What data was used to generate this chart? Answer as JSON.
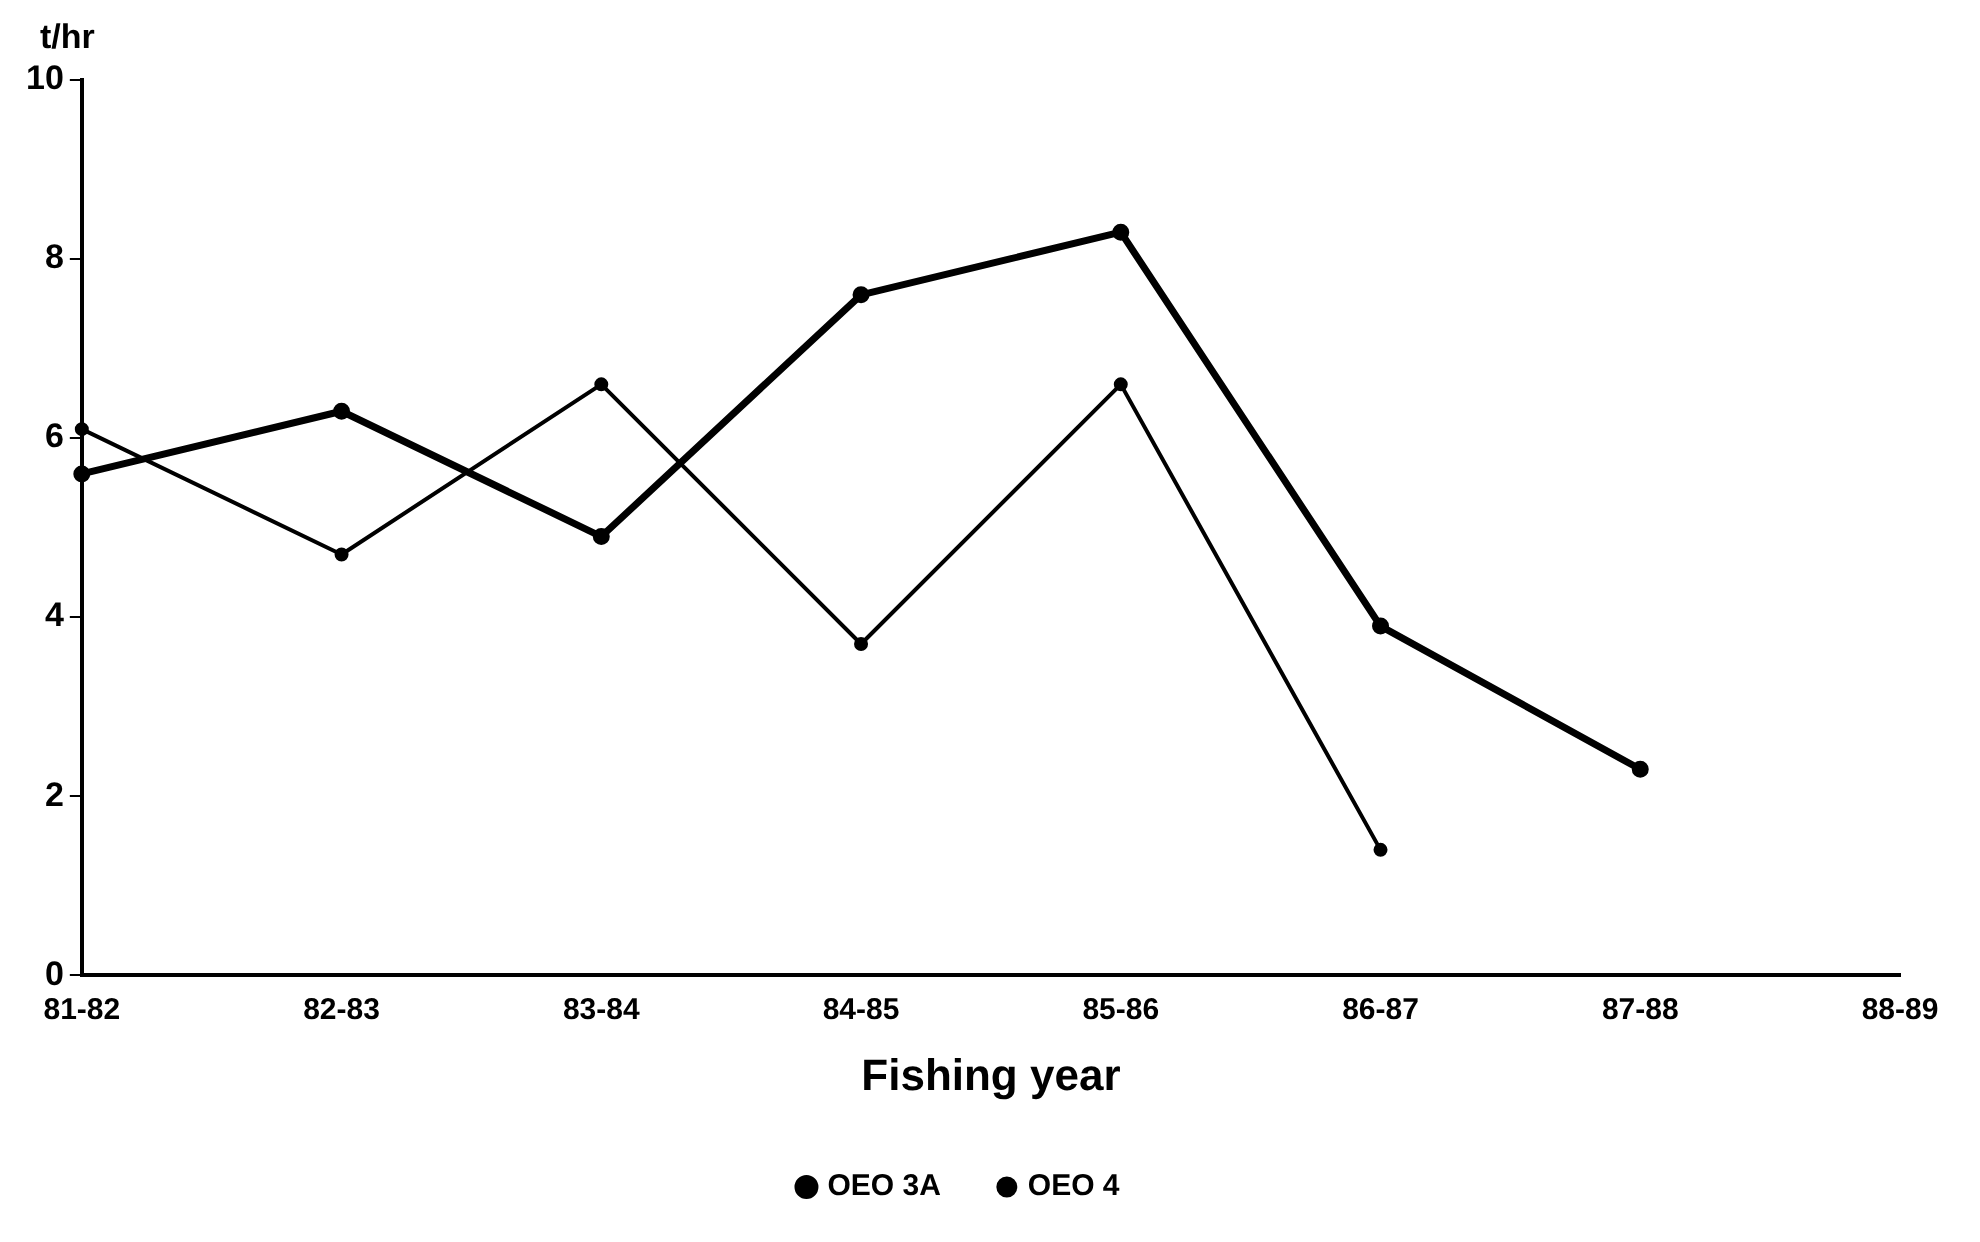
{
  "chart_data": {
    "type": "line",
    "ylabel": "t/hr",
    "xlabel": "Fishing year",
    "categories": [
      "81-82",
      "82-83",
      "83-84",
      "84-85",
      "85-86",
      "86-87",
      "87-88",
      "88-89"
    ],
    "series": [
      {
        "name": "OEO 3A",
        "color": "#000000",
        "values": [
          5.6,
          6.3,
          4.9,
          7.6,
          8.3,
          3.9,
          2.3,
          null
        ]
      },
      {
        "name": "OEO 4",
        "color": "#000000",
        "values": [
          6.1,
          4.7,
          6.6,
          3.7,
          6.6,
          1.4,
          null,
          null
        ]
      }
    ],
    "ylim": [
      0,
      10
    ],
    "yticks": [
      0,
      2,
      4,
      6,
      8,
      10
    ],
    "grid": false,
    "legend": "bottom",
    "marker": "circle",
    "line_style": "solid"
  }
}
